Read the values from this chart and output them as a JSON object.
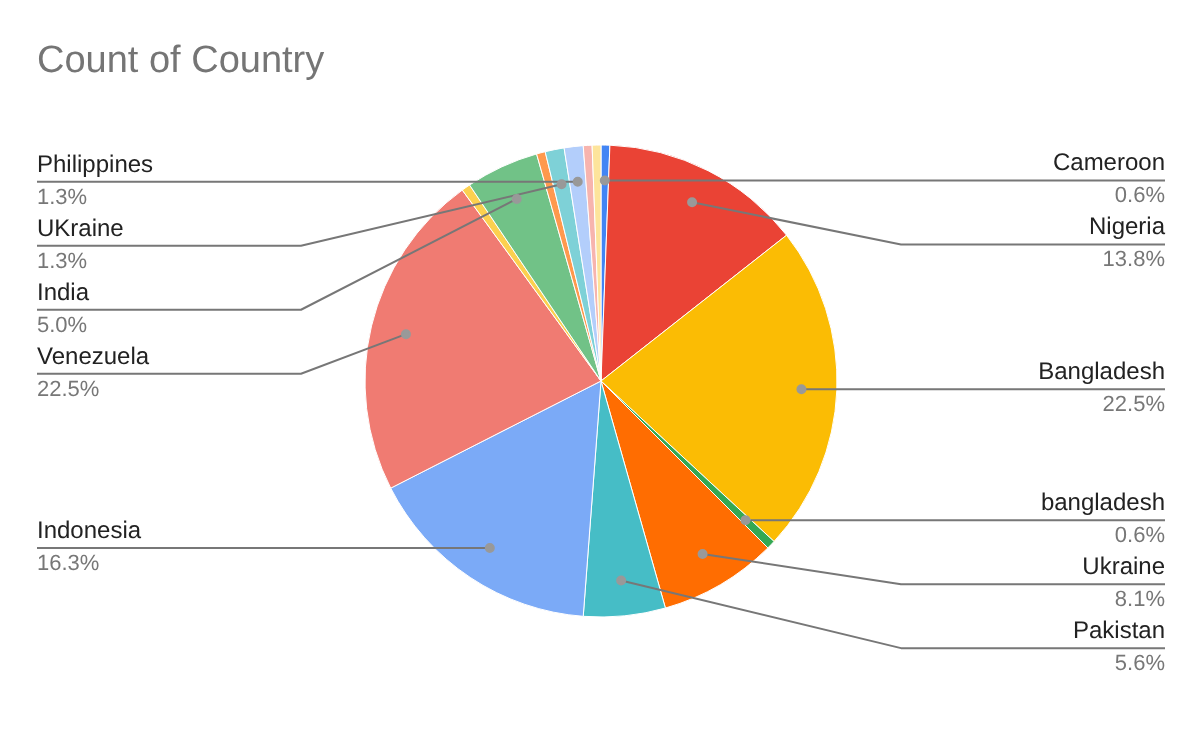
{
  "chart_data": {
    "type": "pie",
    "title": "Count of Country",
    "categories": [
      "Cameroon",
      "Nigeria",
      "Bangladesh",
      "bangladesh",
      "Ukraine",
      "Pakistan",
      "Indonesia",
      "Venezuela",
      null,
      "India",
      null,
      "UKraine",
      "Philippines",
      null,
      null
    ],
    "values": [
      0.6,
      13.8,
      22.5,
      0.6,
      8.1,
      5.6,
      16.3,
      22.5,
      0.6,
      5.0,
      0.6,
      1.3,
      1.3,
      0.6,
      0.6
    ],
    "value_labels": [
      "0.6%",
      "13.8%",
      "22.5%",
      "0.6%",
      "8.1%",
      "5.6%",
      "16.3%",
      "22.5%",
      null,
      "5.0%",
      null,
      "1.3%",
      "1.3%",
      null,
      null
    ],
    "colors": [
      "#4285f4",
      "#ea4335",
      "#fbbc04",
      "#34a853",
      "#ff6d01",
      "#46bdc6",
      "#7baaf7",
      "#f07b72",
      "#fcd04f",
      "#71c287",
      "#ff994d",
      "#7ed1d7",
      "#b3cefb",
      "#f7b4ae",
      "#fde49b"
    ]
  }
}
